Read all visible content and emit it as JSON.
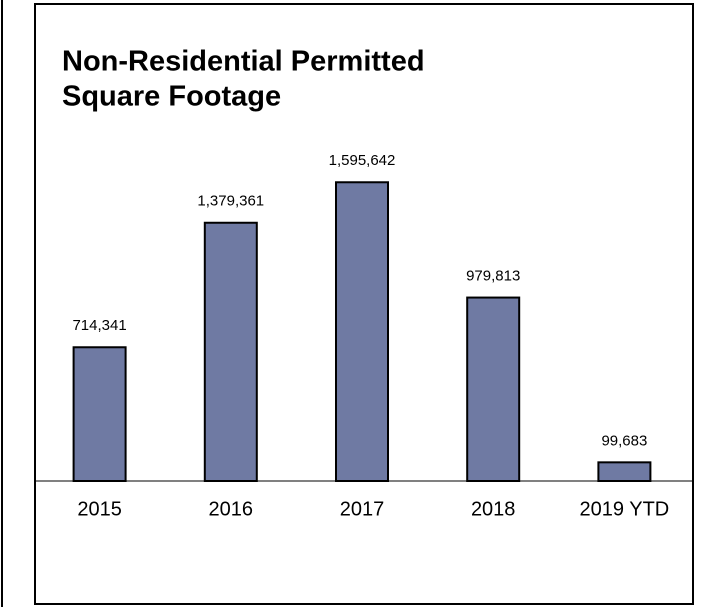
{
  "chart_data": {
    "type": "bar",
    "title": [
      "Non-Residential Permitted",
      "Square Footage"
    ],
    "categories": [
      "2015",
      "2016",
      "2017",
      "2018",
      "2019 YTD"
    ],
    "values": [
      714341,
      1379361,
      1595642,
      979813,
      99683
    ],
    "value_labels": [
      "714,341",
      "1,379,361",
      "1,595,642",
      "979,813",
      "99,683"
    ],
    "color": "#6f7aa3",
    "ylim": [
      0,
      1800000
    ]
  }
}
